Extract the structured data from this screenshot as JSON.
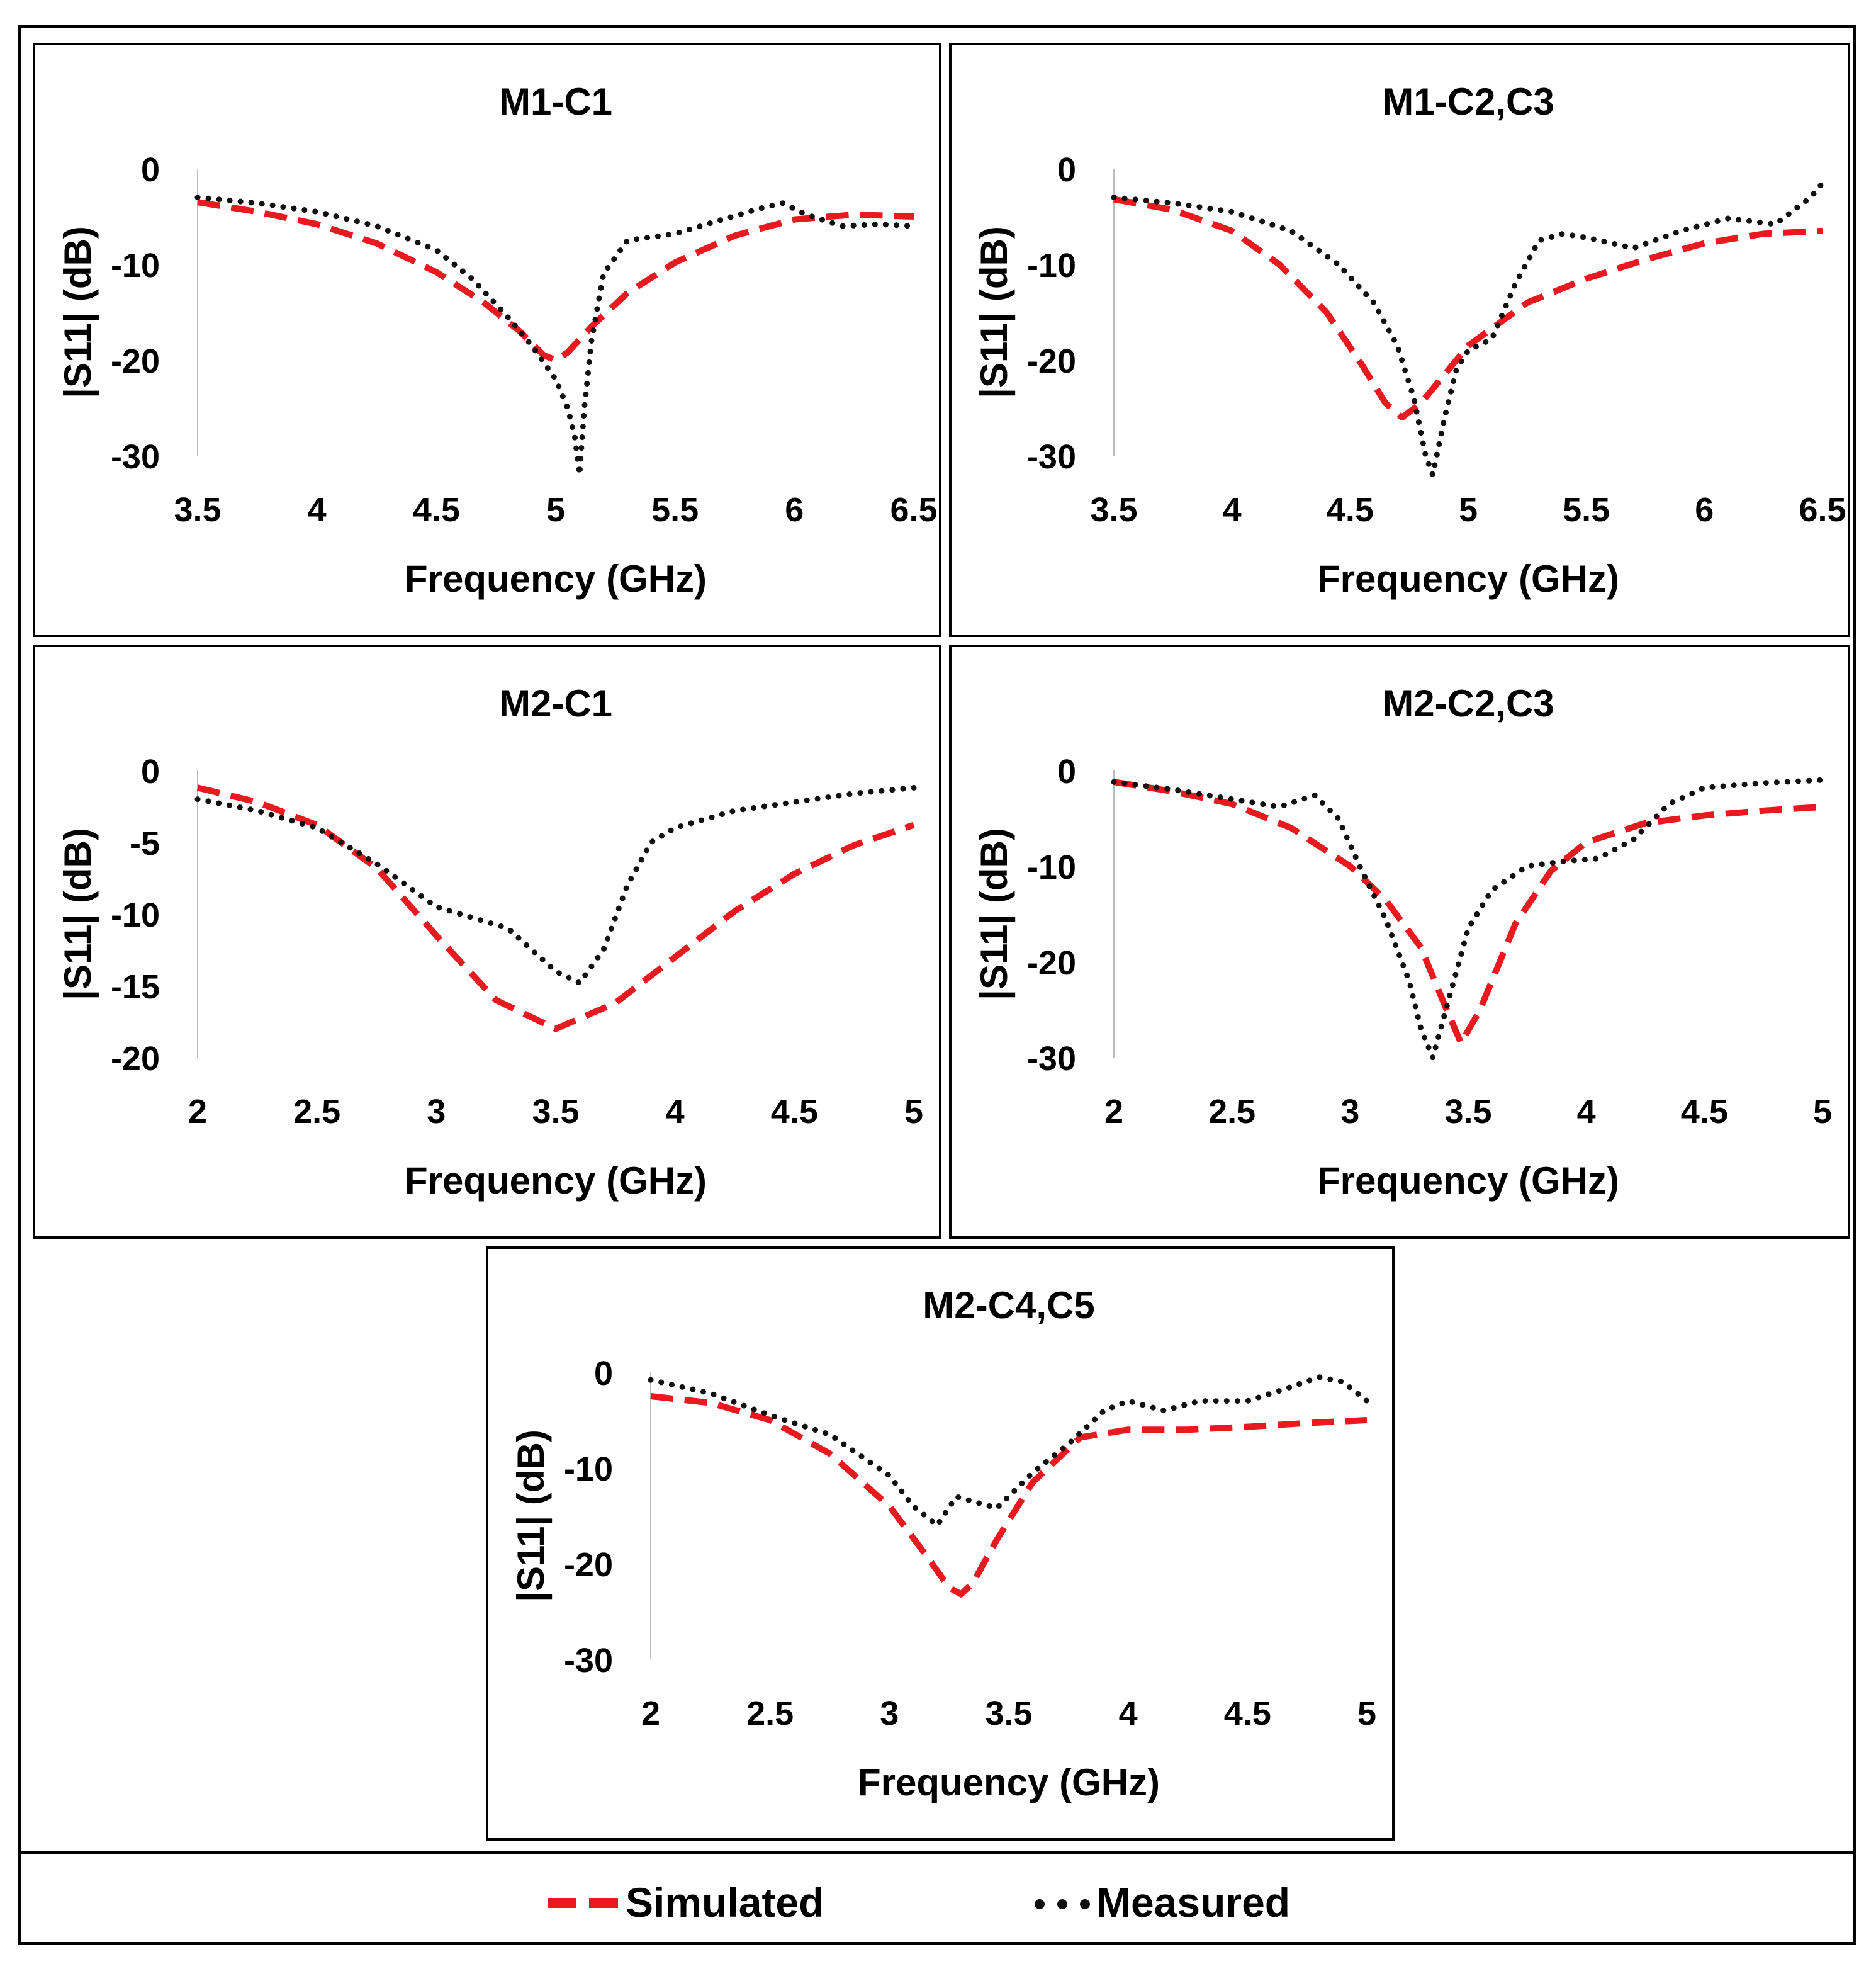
{
  "colors": {
    "simulated": "#e8191f",
    "measured": "#111111",
    "axis": "#bbbbbb",
    "text": "#000000"
  },
  "legend": {
    "simulated_label": "Simulated",
    "measured_label": "Measured"
  },
  "chart_data": [
    {
      "type": "line",
      "title": "M1-C1",
      "xlabel": "Frequency (GHz)",
      "ylabel": "|S11| (dB)",
      "xlim": [
        3.5,
        6.5
      ],
      "ylim": [
        -30,
        0
      ],
      "xticks": [
        "3.5",
        "4",
        "4.5",
        "5",
        "5.5",
        "6",
        "6.5"
      ],
      "yticks": [
        "0",
        "-10",
        "-20",
        "-30"
      ],
      "series": [
        {
          "name": "Simulated",
          "x": [
            3.5,
            3.75,
            4.0,
            4.25,
            4.5,
            4.7,
            4.85,
            4.95,
            5.0,
            5.05,
            5.15,
            5.3,
            5.5,
            5.75,
            6.0,
            6.25,
            6.5
          ],
          "y": [
            -3.5,
            -4.5,
            -5.8,
            -7.8,
            -10.8,
            -14,
            -17,
            -19.5,
            -20,
            -19.2,
            -16.5,
            -13,
            -9.8,
            -7,
            -5.3,
            -4.8,
            -5
          ]
        },
        {
          "name": "Measured",
          "x": [
            3.5,
            3.75,
            4.0,
            4.25,
            4.5,
            4.65,
            4.8,
            4.9,
            5.0,
            5.05,
            5.08,
            5.1,
            5.12,
            5.15,
            5.2,
            5.3,
            5.5,
            5.7,
            5.85,
            5.95,
            6.05,
            6.2,
            6.35,
            6.5
          ],
          "y": [
            -3,
            -3.6,
            -4.5,
            -6,
            -8.5,
            -11.5,
            -15.5,
            -18.5,
            -22,
            -25,
            -28,
            -32,
            -25,
            -18,
            -11,
            -7.5,
            -6.8,
            -5.3,
            -4.2,
            -3.6,
            -4.8,
            -6,
            -5.8,
            -6
          ]
        }
      ]
    },
    {
      "type": "line",
      "title": "M1-C2,C3",
      "xlabel": "Frequency (GHz)",
      "ylabel": "|S11| (dB)",
      "xlim": [
        3.5,
        6.5
      ],
      "ylim": [
        -30,
        0
      ],
      "xticks": [
        "3.5",
        "4",
        "4.5",
        "5",
        "5.5",
        "6",
        "6.5"
      ],
      "yticks": [
        "0",
        "-10",
        "-20",
        "-30"
      ],
      "series": [
        {
          "name": "Simulated",
          "x": [
            3.5,
            3.75,
            4.0,
            4.2,
            4.4,
            4.55,
            4.65,
            4.72,
            4.8,
            4.9,
            5.0,
            5.25,
            5.5,
            5.75,
            6.0,
            6.25,
            6.5
          ],
          "y": [
            -3.2,
            -4.3,
            -6.5,
            -10,
            -15,
            -20.5,
            -24.5,
            -26,
            -24.5,
            -21.5,
            -18.5,
            -14,
            -11.5,
            -9.5,
            -7.8,
            -6.8,
            -6.5
          ]
        },
        {
          "name": "Measured",
          "x": [
            3.5,
            3.75,
            4.0,
            4.25,
            4.45,
            4.6,
            4.7,
            4.77,
            4.82,
            4.85,
            4.9,
            4.95,
            5.0,
            5.1,
            5.2,
            5.3,
            5.4,
            5.5,
            5.7,
            5.9,
            6.1,
            6.3,
            6.45,
            6.5
          ],
          "y": [
            -3,
            -3.6,
            -4.5,
            -6.5,
            -10,
            -14,
            -18.5,
            -24,
            -30,
            -32,
            -26,
            -21,
            -19,
            -17.8,
            -12,
            -7.5,
            -6.8,
            -7.2,
            -8.3,
            -6.5,
            -5.2,
            -5.8,
            -3,
            -1.5
          ]
        }
      ]
    },
    {
      "type": "line",
      "title": "M2-C1",
      "xlabel": "Frequency (GHz)",
      "ylabel": "|S11| (dB)",
      "xlim": [
        2,
        5
      ],
      "ylim": [
        -20,
        0
      ],
      "xticks": [
        "2",
        "2.5",
        "3",
        "3.5",
        "4",
        "4.5",
        "5"
      ],
      "yticks": [
        "0",
        "-5",
        "-10",
        "-15",
        "-20"
      ],
      "series": [
        {
          "name": "Simulated",
          "x": [
            2.0,
            2.25,
            2.5,
            2.75,
            3.0,
            3.25,
            3.5,
            3.75,
            4.0,
            4.25,
            4.5,
            4.75,
            5.0
          ],
          "y": [
            -1.2,
            -2.2,
            -3.8,
            -6.8,
            -11.5,
            -16,
            -18,
            -16.2,
            -13,
            -9.8,
            -7.2,
            -5.2,
            -3.8
          ]
        },
        {
          "name": "Measured",
          "x": [
            2.0,
            2.25,
            2.5,
            2.75,
            3.0,
            3.2,
            3.3,
            3.4,
            3.5,
            3.6,
            3.7,
            3.8,
            3.9,
            4.0,
            4.25,
            4.5,
            4.75,
            5.0
          ],
          "y": [
            -2,
            -2.8,
            -4,
            -6.5,
            -9.5,
            -10.5,
            -11,
            -12.5,
            -14,
            -14.8,
            -12.5,
            -8,
            -5,
            -4,
            -2.8,
            -2.2,
            -1.6,
            -1.2
          ]
        }
      ]
    },
    {
      "type": "line",
      "title": "M2-C2,C3",
      "xlabel": "Frequency (GHz)",
      "ylabel": "|S11| (dB)",
      "xlim": [
        2,
        5
      ],
      "ylim": [
        -30,
        0
      ],
      "xticks": [
        "2",
        "2.5",
        "3",
        "3.5",
        "4",
        "4.5",
        "5"
      ],
      "yticks": [
        "0",
        "-10",
        "-20",
        "-30"
      ],
      "series": [
        {
          "name": "Simulated",
          "x": [
            2.0,
            2.25,
            2.5,
            2.75,
            3.0,
            3.15,
            3.3,
            3.4,
            3.47,
            3.55,
            3.7,
            3.85,
            4.0,
            4.25,
            4.5,
            4.75,
            5.0
          ],
          "y": [
            -1.2,
            -2.2,
            -3.5,
            -6,
            -10,
            -13.5,
            -18.5,
            -24.5,
            -28.5,
            -25,
            -16,
            -10.5,
            -7.5,
            -5.5,
            -4.7,
            -4.2,
            -3.8
          ]
        },
        {
          "name": "Measured",
          "x": [
            2.0,
            2.25,
            2.5,
            2.7,
            2.85,
            2.95,
            3.05,
            3.15,
            3.25,
            3.3,
            3.35,
            3.4,
            3.5,
            3.6,
            3.75,
            3.9,
            4.05,
            4.2,
            4.35,
            4.5,
            4.75,
            5.0
          ],
          "y": [
            -1.2,
            -2,
            -3,
            -3.8,
            -2.6,
            -5,
            -10.5,
            -15.5,
            -22,
            -27,
            -30,
            -25.5,
            -16.5,
            -12.5,
            -10,
            -9.5,
            -9.2,
            -7.2,
            -3.5,
            -1.8,
            -1.3,
            -1
          ]
        }
      ]
    },
    {
      "type": "line",
      "title": "M2-C4,C5",
      "xlabel": "Frequency (GHz)",
      "ylabel": "|S11| (dB)",
      "xlim": [
        2,
        5
      ],
      "ylim": [
        -30,
        0
      ],
      "xticks": [
        "2",
        "2.5",
        "3",
        "3.5",
        "4",
        "4.5",
        "5"
      ],
      "yticks": [
        "0",
        "-10",
        "-20",
        "-30"
      ],
      "series": [
        {
          "name": "Simulated",
          "x": [
            2.0,
            2.25,
            2.5,
            2.75,
            3.0,
            3.15,
            3.25,
            3.3,
            3.35,
            3.45,
            3.6,
            3.8,
            4.0,
            4.25,
            4.5,
            4.75,
            5.0
          ],
          "y": [
            -2.5,
            -3.2,
            -5,
            -8.5,
            -14,
            -19,
            -22.5,
            -23.2,
            -22,
            -17.5,
            -11.5,
            -6.8,
            -6,
            -6,
            -5.7,
            -5.3,
            -5
          ]
        },
        {
          "name": "Measured",
          "x": [
            2.0,
            2.25,
            2.5,
            2.75,
            3.0,
            3.1,
            3.2,
            3.28,
            3.35,
            3.45,
            3.6,
            3.75,
            3.9,
            4.0,
            4.15,
            4.3,
            4.5,
            4.65,
            4.8,
            4.9,
            5.0
          ],
          "y": [
            -0.8,
            -2.2,
            -4.5,
            -6.5,
            -10.8,
            -14,
            -16,
            -13,
            -13.5,
            -14.2,
            -10.5,
            -7.5,
            -4,
            -3,
            -4,
            -3,
            -3,
            -1.8,
            -0.5,
            -1,
            -3
          ]
        }
      ]
    }
  ]
}
